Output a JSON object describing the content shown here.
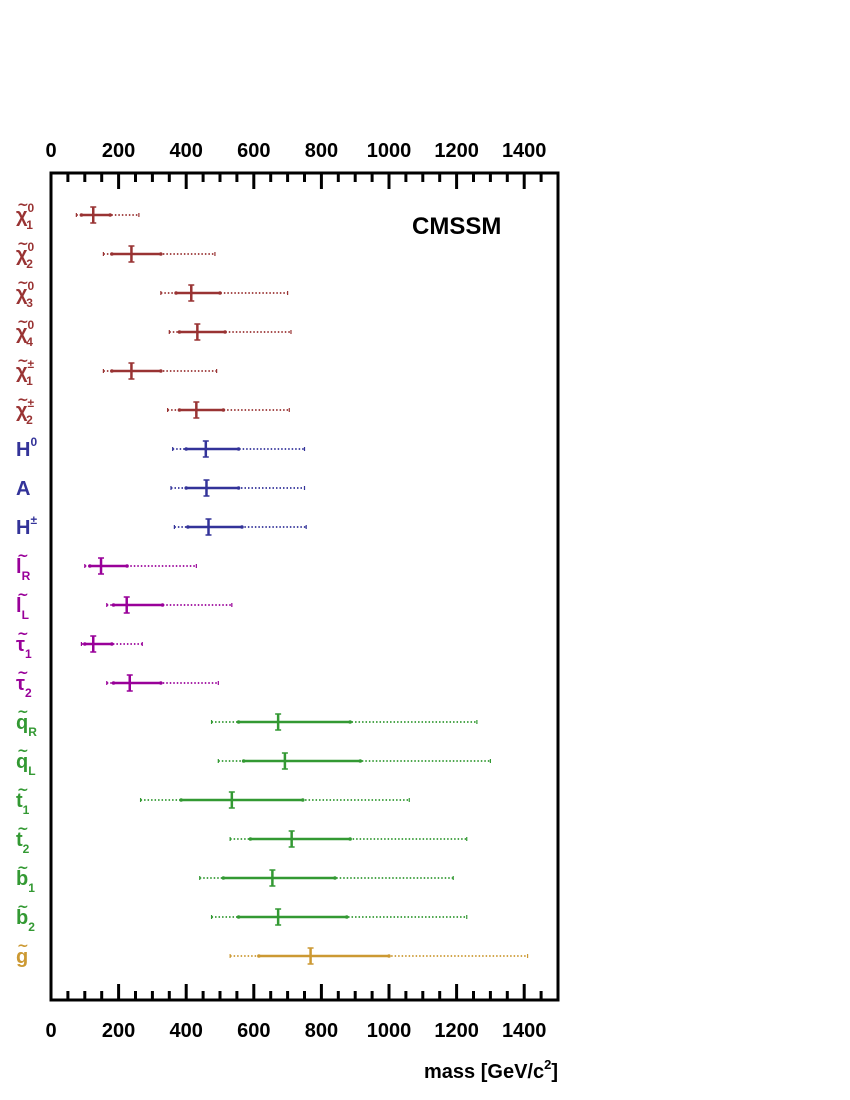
{
  "chart_data": {
    "type": "range",
    "annotation": "CMSSM",
    "xlabel": "mass [GeV/c",
    "xlabel_sup": "2",
    "xlabel_end": "]",
    "xlim": [
      0,
      1500
    ],
    "xticks": [
      "0",
      "200",
      "400",
      "600",
      "800",
      "1000",
      "1200",
      "1400"
    ],
    "xtick_values": [
      0,
      200,
      400,
      600,
      800,
      1000,
      1200,
      1400
    ],
    "colors": {
      "neutralino_chargino": "#993333",
      "higgs": "#333399",
      "slepton": "#990099",
      "squark": "#339933",
      "gluino": "#cc9933"
    },
    "rows": [
      {
        "name": "χ̃",
        "base": "χ",
        "sub": "1",
        "sup": "0",
        "color": "#993333",
        "central": 125,
        "inner": [
          90,
          175
        ],
        "outer": [
          75,
          260
        ]
      },
      {
        "name": "χ̃",
        "base": "χ",
        "sub": "2",
        "sup": "0",
        "color": "#993333",
        "central": 238,
        "inner": [
          180,
          325
        ],
        "outer": [
          155,
          485
        ]
      },
      {
        "name": "χ̃",
        "base": "χ",
        "sub": "3",
        "sup": "0",
        "color": "#993333",
        "central": 415,
        "inner": [
          370,
          500
        ],
        "outer": [
          325,
          700
        ]
      },
      {
        "name": "χ̃",
        "base": "χ",
        "sub": "4",
        "sup": "0",
        "color": "#993333",
        "central": 433,
        "inner": [
          380,
          515
        ],
        "outer": [
          350,
          710
        ]
      },
      {
        "name": "χ̃",
        "base": "χ",
        "sub": "1",
        "sup": "±",
        "color": "#993333",
        "central": 238,
        "inner": [
          180,
          325
        ],
        "outer": [
          155,
          490
        ]
      },
      {
        "name": "χ̃",
        "base": "χ",
        "sub": "2",
        "sup": "±",
        "color": "#993333",
        "central": 430,
        "inner": [
          380,
          510
        ],
        "outer": [
          345,
          705
        ]
      },
      {
        "name": "H",
        "base": "H",
        "sub": "",
        "sup": "0",
        "color": "#333399",
        "central": 458,
        "inner": [
          400,
          555
        ],
        "outer": [
          360,
          750
        ]
      },
      {
        "name": "A",
        "base": "A",
        "sub": "",
        "sup": "",
        "color": "#333399",
        "central": 460,
        "inner": [
          400,
          555
        ],
        "outer": [
          355,
          750
        ]
      },
      {
        "name": "H",
        "base": "H",
        "sub": "",
        "sup": "±",
        "color": "#333399",
        "central": 466,
        "inner": [
          405,
          565
        ],
        "outer": [
          365,
          755
        ]
      },
      {
        "name": "l̃",
        "base": "l",
        "sub": "R",
        "sup": "",
        "color": "#990099",
        "central": 148,
        "inner": [
          115,
          225
        ],
        "outer": [
          100,
          430
        ]
      },
      {
        "name": "l̃",
        "base": "l",
        "sub": "L",
        "sup": "",
        "color": "#990099",
        "central": 224,
        "inner": [
          185,
          330
        ],
        "outer": [
          165,
          535
        ]
      },
      {
        "name": "τ̃",
        "base": "τ",
        "sub": "1",
        "sup": "",
        "color": "#990099",
        "central": 125,
        "inner": [
          100,
          180
        ],
        "outer": [
          90,
          270
        ]
      },
      {
        "name": "τ̃",
        "base": "τ",
        "sub": "2",
        "sup": "",
        "color": "#990099",
        "central": 233,
        "inner": [
          185,
          325
        ],
        "outer": [
          165,
          495
        ]
      },
      {
        "name": "q̃",
        "base": "q",
        "sub": "R",
        "sup": "",
        "color": "#339933",
        "central": 672,
        "inner": [
          555,
          885
        ],
        "outer": [
          475,
          1260
        ]
      },
      {
        "name": "q̃",
        "base": "q",
        "sub": "L",
        "sup": "",
        "color": "#339933",
        "central": 692,
        "inner": [
          570,
          915
        ],
        "outer": [
          495,
          1300
        ]
      },
      {
        "name": "t̃",
        "base": "t",
        "sub": "1",
        "sup": "",
        "color": "#339933",
        "central": 535,
        "inner": [
          385,
          745
        ],
        "outer": [
          265,
          1060
        ]
      },
      {
        "name": "t̃",
        "base": "t",
        "sub": "2",
        "sup": "",
        "color": "#339933",
        "central": 712,
        "inner": [
          590,
          885
        ],
        "outer": [
          530,
          1230
        ]
      },
      {
        "name": "b̃",
        "base": "b",
        "sub": "1",
        "sup": "",
        "color": "#339933",
        "central": 655,
        "inner": [
          510,
          840
        ],
        "outer": [
          440,
          1190
        ]
      },
      {
        "name": "b̃",
        "base": "b",
        "sub": "2",
        "sup": "",
        "color": "#339933",
        "central": 672,
        "inner": [
          555,
          875
        ],
        "outer": [
          475,
          1230
        ]
      },
      {
        "name": "g̃",
        "base": "g",
        "sub": "",
        "sup": "",
        "color": "#cc9933",
        "central": 768,
        "inner": [
          615,
          1000
        ],
        "outer": [
          530,
          1410
        ]
      }
    ]
  }
}
